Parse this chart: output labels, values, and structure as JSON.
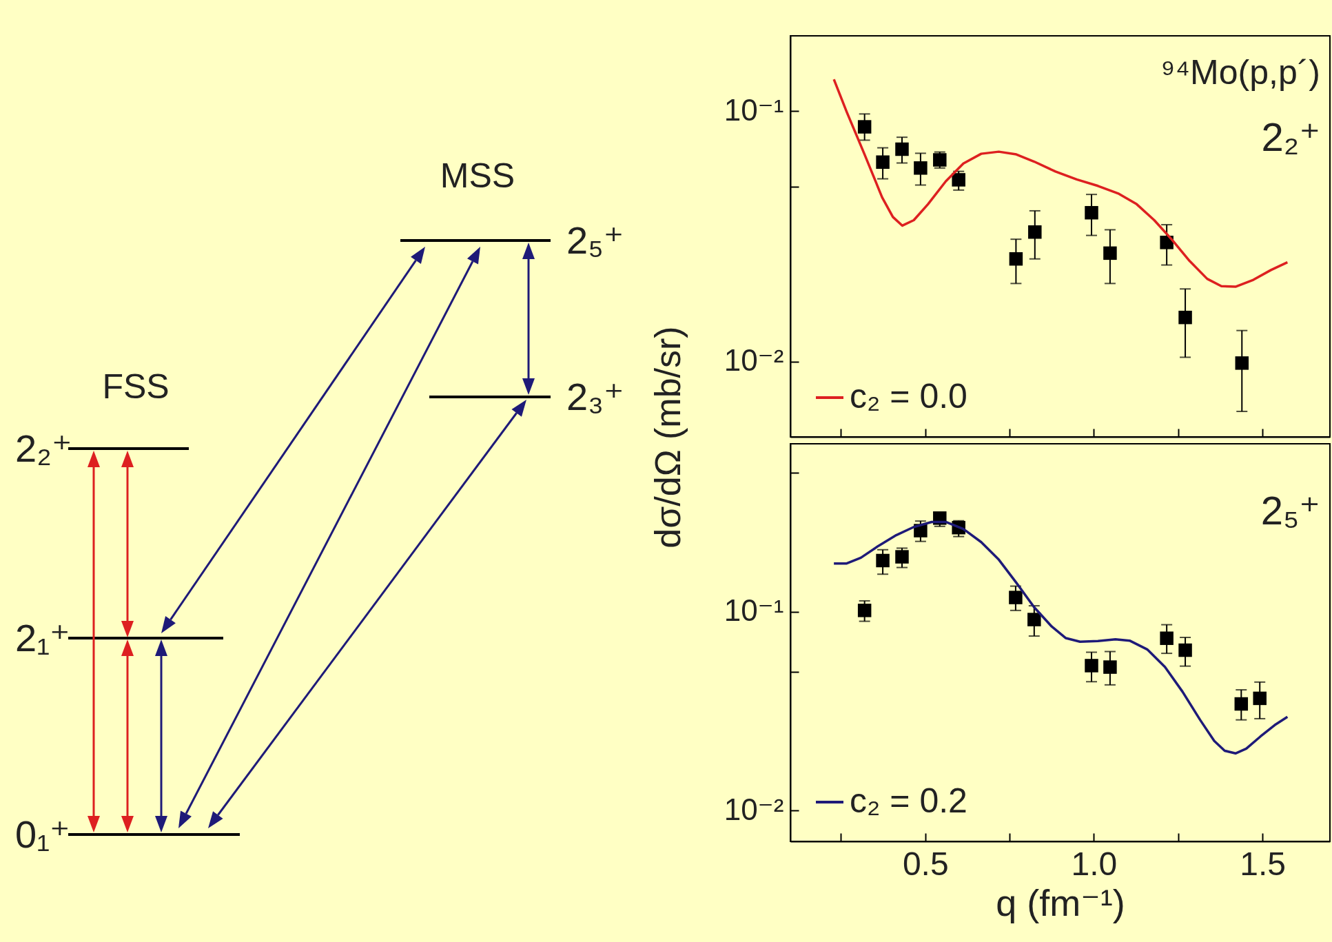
{
  "chart_data": [
    {
      "type": "other",
      "annotations": [
        "FSS",
        "MSS",
        "0₁⁺",
        "2₁⁺",
        "2₂⁺",
        "2₃⁺",
        "2₅⁺"
      ]
    },
    {
      "type": "scatter",
      "ylabel": "dσ/dΩ (mb/sr)",
      "log": "y",
      "xlim": [
        0.1,
        1.7
      ],
      "xticks": [
        {
          "value": 0.25,
          "label": null
        },
        {
          "value": 0.5,
          "label": null
        },
        {
          "value": 0.75,
          "label": null
        },
        {
          "value": 1.0,
          "label": null
        },
        {
          "value": 1.25,
          "label": null
        },
        {
          "value": 1.5,
          "label": null
        }
      ],
      "ylim": [
        0.005,
        0.2
      ],
      "yticks": [
        {
          "value": 0.01,
          "label": "10⁻²"
        },
        {
          "value": 0.05,
          "label": null
        },
        {
          "value": 0.1,
          "label": "10⁻¹"
        }
      ],
      "tick_labels": "y",
      "grid": false,
      "legend": "bottom left",
      "annotations": [
        "⁹⁴Mo(p,p´)",
        "2₂⁺"
      ],
      "series": [
        {
          "name": "c₂ = 0.0",
          "type": "line",
          "color": "#dd2020",
          "line_style": "solid",
          "marker": "none",
          "x": [
            0.229,
            0.267,
            0.32,
            0.372,
            0.404,
            0.432,
            0.466,
            0.508,
            0.561,
            0.613,
            0.666,
            0.718,
            0.77,
            0.823,
            0.886,
            0.949,
            1.012,
            1.074,
            1.127,
            1.179,
            1.232,
            1.284,
            1.336,
            1.378,
            1.42,
            1.473,
            1.525,
            1.574
          ],
          "values": [
            0.134,
            0.0994,
            0.0672,
            0.0453,
            0.0378,
            0.0349,
            0.0367,
            0.0425,
            0.0525,
            0.0618,
            0.0676,
            0.0689,
            0.0672,
            0.0629,
            0.0574,
            0.0534,
            0.0503,
            0.0468,
            0.0425,
            0.0367,
            0.0306,
            0.0252,
            0.0214,
            0.02,
            0.0199,
            0.0212,
            0.0232,
            0.0249
          ]
        },
        {
          "type": "scatter",
          "color": "#000000",
          "marker": "square",
          "x": [
            0.32,
            0.374,
            0.431,
            0.486,
            0.543,
            0.599,
            0.769,
            0.825,
            0.993,
            1.048,
            1.216,
            1.271,
            1.439
          ],
          "values": [
            0.0866,
            0.0626,
            0.0705,
            0.0593,
            0.0639,
            0.0532,
            0.0257,
            0.0329,
            0.0393,
            0.0271,
            0.0299,
            0.015,
            0.00986
          ],
          "errors": [
            [
              0.0766,
              0.0975
            ],
            [
              0.0537,
              0.0714
            ],
            [
              0.0621,
              0.0787
            ],
            [
              0.0507,
              0.0679
            ],
            [
              0.0593,
              0.0687
            ],
            [
              0.0484,
              0.0575
            ],
            [
              0.0205,
              0.0308
            ],
            [
              0.0257,
              0.04
            ],
            [
              0.0319,
              0.0465
            ],
            [
              0.0205,
              0.0336
            ],
            [
              0.0243,
              0.0352
            ],
            [
              0.0104,
              0.0195
            ],
            [
              0.00632,
              0.0133
            ]
          ]
        }
      ]
    },
    {
      "type": "scatter",
      "xlabel": "q (fm⁻¹)",
      "log": "y",
      "xlim": [
        0.1,
        1.7
      ],
      "xticks": [
        {
          "value": 0.25,
          "label": null
        },
        {
          "value": 0.5,
          "label": "0.5"
        },
        {
          "value": 0.75,
          "label": null
        },
        {
          "value": 1.0,
          "label": "1.0"
        },
        {
          "value": 1.25,
          "label": null
        },
        {
          "value": 1.5,
          "label": "1.5"
        }
      ],
      "ylim": [
        0.007,
        0.7
      ],
      "yticks": [
        {
          "value": 0.01,
          "label": "10⁻²"
        },
        {
          "value": 0.05,
          "label": null
        },
        {
          "value": 0.1,
          "label": "10⁻¹"
        },
        {
          "value": 0.5,
          "label": null
        }
      ],
      "grid": false,
      "legend": "bottom left",
      "annotations": [
        "2₅⁺"
      ],
      "series": [
        {
          "name": "c₂ = 0.2",
          "type": "line",
          "color": "#1e1a78",
          "line_style": "solid",
          "marker": "none",
          "x": [
            0.229,
            0.267,
            0.309,
            0.362,
            0.414,
            0.466,
            0.519,
            0.561,
            0.613,
            0.666,
            0.718,
            0.77,
            0.823,
            0.875,
            0.917,
            0.959,
            1.012,
            1.064,
            1.106,
            1.158,
            1.211,
            1.263,
            1.315,
            1.357,
            1.388,
            1.42,
            1.452,
            1.494,
            1.536,
            1.574
          ],
          "values": [
            0.175,
            0.175,
            0.187,
            0.215,
            0.243,
            0.267,
            0.283,
            0.283,
            0.261,
            0.224,
            0.183,
            0.14,
            0.1054,
            0.0843,
            0.0737,
            0.0707,
            0.0713,
            0.0727,
            0.0716,
            0.0647,
            0.0527,
            0.0396,
            0.0286,
            0.0224,
            0.02,
            0.0194,
            0.0205,
            0.0236,
            0.0269,
            0.0296
          ]
        },
        {
          "type": "scatter",
          "color": "#000000",
          "marker": "square",
          "x": [
            0.32,
            0.374,
            0.431,
            0.486,
            0.543,
            0.599,
            0.768,
            0.823,
            0.993,
            1.048,
            1.216,
            1.271,
            1.437,
            1.492
          ],
          "values": [
            0.1016,
            0.181,
            0.189,
            0.256,
            0.296,
            0.265,
            0.118,
            0.0914,
            0.0536,
            0.0527,
            0.0736,
            0.0641,
            0.0344,
            0.0367
          ],
          "errors": [
            [
              0.0896,
              0.1135
            ],
            [
              0.1545,
              0.205
            ],
            [
              0.167,
              0.209
            ],
            [
              0.226,
              0.286
            ],
            [
              0.269,
              0.312
            ],
            [
              0.239,
              0.287
            ],
            [
              0.1016,
              0.1346
            ],
            [
              0.0755,
              0.1072
            ],
            [
              0.0445,
              0.0626
            ],
            [
              0.0429,
              0.0631
            ],
            [
              0.0618,
              0.0861
            ],
            [
              0.0533,
              0.0743
            ],
            [
              0.0286,
              0.0405
            ],
            [
              0.029,
              0.0443
            ]
          ]
        }
      ]
    }
  ]
}
